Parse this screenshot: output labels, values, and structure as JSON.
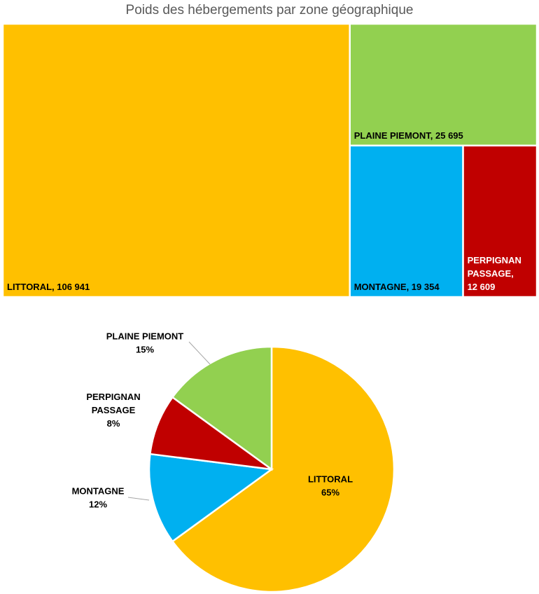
{
  "chart_data": [
    {
      "type": "treemap",
      "title": "Poids des hébergements par zone géographique",
      "items": [
        {
          "name": "LITTORAL",
          "value": 106941,
          "value_label": "106 941",
          "color": "#FFC000",
          "text_color": "#000000"
        },
        {
          "name": "PLAINE PIEMONT",
          "value": 25695,
          "value_label": "25 695",
          "color": "#92D050",
          "text_color": "#000000"
        },
        {
          "name": "MONTAGNE",
          "value": 19354,
          "value_label": "19 354",
          "color": "#00B0F0",
          "text_color": "#000000"
        },
        {
          "name": "PERPIGNAN PASSAGE",
          "value": 12609,
          "value_label": "12 609",
          "color": "#C00000",
          "text_color": "#FFFFFF"
        }
      ]
    },
    {
      "type": "pie",
      "slices": [
        {
          "name": "LITTORAL",
          "percent": 65,
          "percent_label": "65%",
          "color": "#FFC000"
        },
        {
          "name": "MONTAGNE",
          "percent": 12,
          "percent_label": "12%",
          "color": "#00B0F0"
        },
        {
          "name": "PERPIGNAN PASSAGE",
          "percent": 8,
          "percent_label": "8%",
          "color": "#C00000"
        },
        {
          "name": "PLAINE PIEMONT",
          "percent": 15,
          "percent_label": "15%",
          "color": "#92D050"
        }
      ]
    }
  ]
}
